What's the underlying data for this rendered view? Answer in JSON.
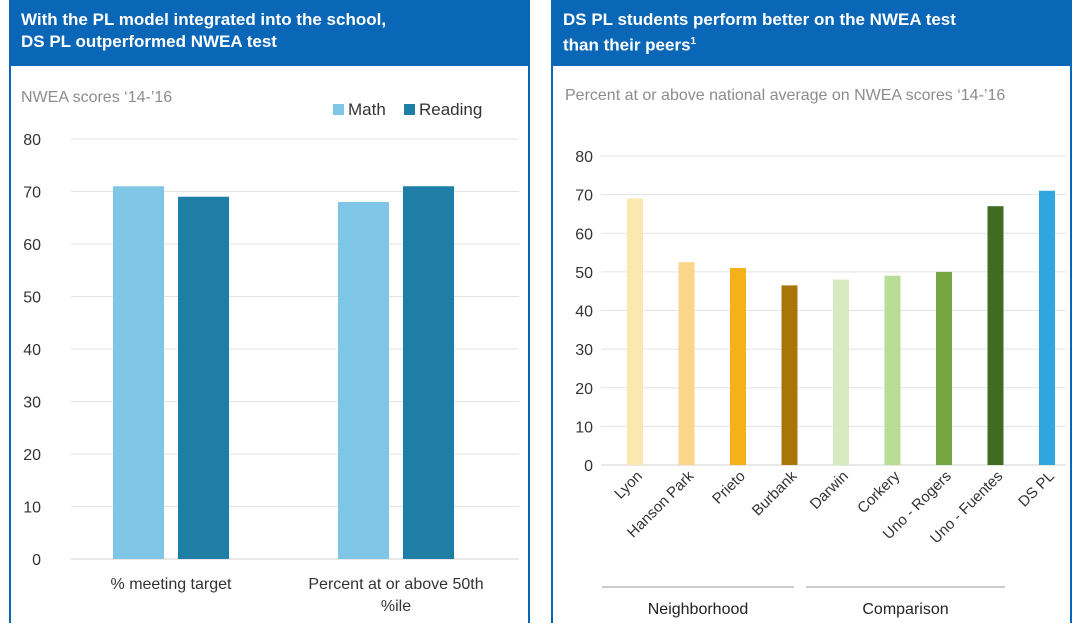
{
  "left_panel": {
    "header_line1": "With the PL model integrated into the school,",
    "header_line2": "DS PL outperformed NWEA test"
  },
  "right_panel": {
    "header_line1": "DS PL students perform better on the NWEA test",
    "header_line2": "than their peers",
    "header_sup": "1"
  },
  "colors": {
    "header_bg": "#0a66b7",
    "math": "#7fc6e6",
    "reading": "#1f7ea6"
  },
  "chart_data": [
    {
      "type": "bar",
      "subtitle": "NWEA scores ‘14-’16",
      "categories": [
        "% meeting target",
        "Percent at or above 50th %ile"
      ],
      "series": [
        {
          "name": "Math",
          "values": [
            71,
            68
          ],
          "color": "#7fc6e6"
        },
        {
          "name": "Reading",
          "values": [
            69,
            71
          ],
          "color": "#1f7ea6"
        }
      ],
      "ylim": [
        0,
        80
      ],
      "yticks": [
        0,
        10,
        20,
        30,
        40,
        50,
        60,
        70,
        80
      ],
      "legend": "top-right",
      "grid": true
    },
    {
      "type": "bar",
      "subtitle": "Percent at or above national average on NWEA scores ‘14-’16",
      "categories": [
        "Lyon",
        "Hanson Park",
        "Prieto",
        "Burbank",
        "Darwin",
        "Corkery",
        "Uno - Rogers",
        "Uno - Fuentes",
        "DS PL"
      ],
      "values": [
        69,
        52.5,
        51,
        46.5,
        48,
        49,
        50,
        67,
        71
      ],
      "bar_colors": [
        "#fde7b0",
        "#fbd58a",
        "#f6b01a",
        "#a87608",
        "#d7ebc1",
        "#b7dd96",
        "#76a543",
        "#3f6b22",
        "#2fa6de"
      ],
      "groups": [
        {
          "label": "Neighborhood",
          "categories": [
            "Lyon",
            "Hanson Park",
            "Prieto",
            "Burbank"
          ]
        },
        {
          "label": "Comparison",
          "categories": [
            "Darwin",
            "Corkery",
            "Uno - Rogers",
            "Uno - Fuentes"
          ]
        }
      ],
      "ylim": [
        0,
        80
      ],
      "yticks": [
        0,
        10,
        20,
        30,
        40,
        50,
        60,
        70,
        80
      ],
      "grid": true
    }
  ]
}
